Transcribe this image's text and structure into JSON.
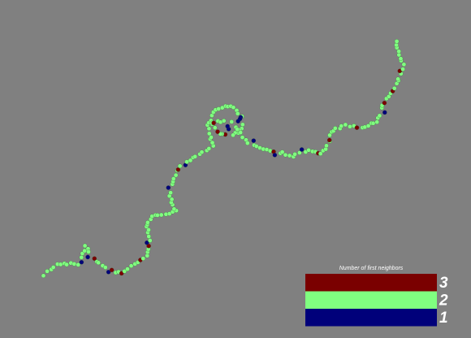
{
  "legend": {
    "title": "Number of first neighbors",
    "items": [
      {
        "label": 3,
        "color": "#7a0000"
      },
      {
        "label": 2,
        "color": "#80ff80"
      },
      {
        "label": 1,
        "color": "#00007a"
      }
    ]
  }
}
